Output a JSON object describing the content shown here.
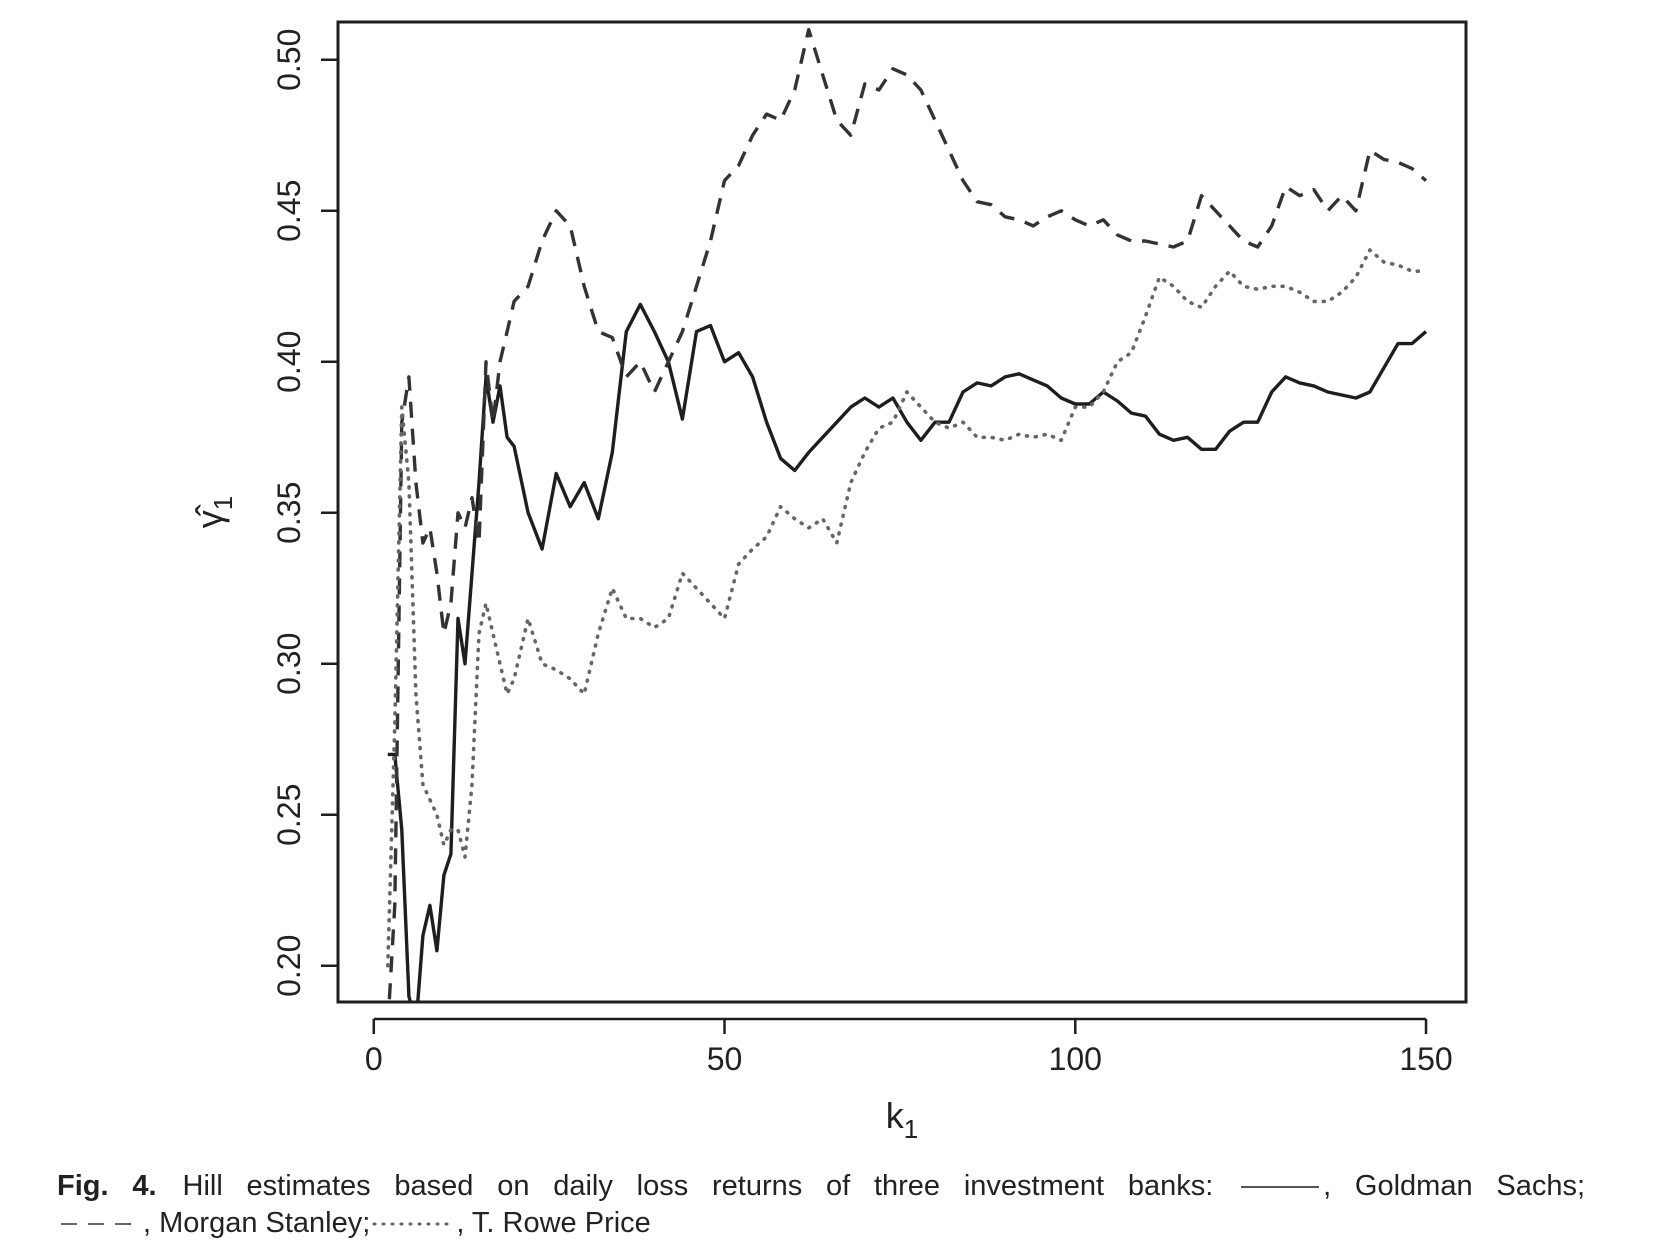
{
  "chart_data": {
    "type": "line",
    "x_label": "k",
    "x_label_subscript": "1",
    "y_label": "γ̂",
    "y_label_subscript": "1",
    "x": [
      2,
      3,
      4,
      5,
      6,
      7,
      8,
      9,
      10,
      11,
      12,
      13,
      14,
      15,
      16,
      17,
      18,
      19,
      20,
      22,
      24,
      26,
      28,
      30,
      32,
      34,
      36,
      38,
      40,
      42,
      44,
      46,
      48,
      50,
      52,
      54,
      56,
      58,
      60,
      62,
      64,
      66,
      68,
      70,
      72,
      74,
      76,
      78,
      80,
      82,
      84,
      86,
      88,
      90,
      92,
      94,
      96,
      98,
      100,
      102,
      104,
      106,
      108,
      110,
      112,
      114,
      116,
      118,
      120,
      122,
      124,
      126,
      128,
      130,
      132,
      134,
      136,
      138,
      140,
      142,
      144,
      146,
      148,
      150
    ],
    "series": [
      {
        "name": "Goldman Sachs",
        "color": "#1e1e1e",
        "dash": "solid",
        "values": [
          0.27,
          0.27,
          0.245,
          0.19,
          0.18,
          0.21,
          0.22,
          0.205,
          0.23,
          0.237,
          0.315,
          0.3,
          0.33,
          0.36,
          0.395,
          0.38,
          0.392,
          0.375,
          0.372,
          0.35,
          0.338,
          0.363,
          0.352,
          0.36,
          0.348,
          0.37,
          0.41,
          0.419,
          0.41,
          0.4,
          0.381,
          0.41,
          0.412,
          0.4,
          0.403,
          0.395,
          0.38,
          0.368,
          0.364,
          0.37,
          0.375,
          0.38,
          0.385,
          0.388,
          0.385,
          0.388,
          0.38,
          0.374,
          0.38,
          0.38,
          0.39,
          0.393,
          0.392,
          0.395,
          0.396,
          0.394,
          0.392,
          0.388,
          0.386,
          0.386,
          0.39,
          0.387,
          0.383,
          0.382,
          0.376,
          0.374,
          0.375,
          0.371,
          0.371,
          0.377,
          0.38,
          0.38,
          0.39,
          0.395,
          0.393,
          0.392,
          0.39,
          0.389,
          0.388,
          0.39,
          0.398,
          0.406,
          0.406,
          0.41
        ]
      },
      {
        "name": "Morgan Stanley",
        "color": "#333333",
        "dash": "dashed",
        "values": [
          0.18,
          0.22,
          0.38,
          0.395,
          0.36,
          0.34,
          0.345,
          0.33,
          0.31,
          0.32,
          0.35,
          0.345,
          0.355,
          0.34,
          0.4,
          0.38,
          0.4,
          0.41,
          0.42,
          0.425,
          0.44,
          0.45,
          0.445,
          0.425,
          0.41,
          0.408,
          0.395,
          0.4,
          0.39,
          0.4,
          0.41,
          0.425,
          0.44,
          0.46,
          0.465,
          0.475,
          0.482,
          0.48,
          0.49,
          0.51,
          0.495,
          0.48,
          0.475,
          0.492,
          0.49,
          0.497,
          0.495,
          0.49,
          0.48,
          0.47,
          0.46,
          0.453,
          0.452,
          0.448,
          0.447,
          0.445,
          0.448,
          0.45,
          0.447,
          0.445,
          0.447,
          0.442,
          0.44,
          0.44,
          0.439,
          0.438,
          0.44,
          0.455,
          0.45,
          0.445,
          0.44,
          0.438,
          0.445,
          0.458,
          0.455,
          0.457,
          0.45,
          0.455,
          0.45,
          0.47,
          0.467,
          0.466,
          0.464,
          0.46
        ]
      },
      {
        "name": "T. Rowe Price",
        "color": "#666666",
        "dash": "dotted",
        "values": [
          0.2,
          0.28,
          0.385,
          0.36,
          0.29,
          0.26,
          0.255,
          0.25,
          0.24,
          0.245,
          0.245,
          0.236,
          0.26,
          0.31,
          0.32,
          0.31,
          0.3,
          0.29,
          0.295,
          0.315,
          0.3,
          0.298,
          0.295,
          0.29,
          0.31,
          0.325,
          0.315,
          0.315,
          0.312,
          0.315,
          0.33,
          0.325,
          0.32,
          0.315,
          0.333,
          0.338,
          0.342,
          0.352,
          0.348,
          0.345,
          0.348,
          0.34,
          0.36,
          0.37,
          0.378,
          0.38,
          0.39,
          0.385,
          0.38,
          0.378,
          0.38,
          0.375,
          0.375,
          0.374,
          0.376,
          0.375,
          0.376,
          0.374,
          0.385,
          0.385,
          0.39,
          0.4,
          0.403,
          0.415,
          0.428,
          0.425,
          0.42,
          0.418,
          0.425,
          0.43,
          0.425,
          0.424,
          0.425,
          0.425,
          0.423,
          0.42,
          0.42,
          0.423,
          0.428,
          0.437,
          0.433,
          0.432,
          0.43,
          0.43
        ]
      }
    ],
    "xlim": [
      -5.1,
      155.7
    ],
    "xticks": [
      0,
      50,
      100,
      150
    ],
    "ylim": [
      0.188,
      0.5125
    ],
    "yticks": [
      {
        "value": 0.2,
        "label": "0.20"
      },
      0.25,
      {
        "value": 0.3,
        "label": "0.30"
      },
      0.35,
      {
        "value": 0.4,
        "label": "0.40"
      },
      0.45,
      {
        "value": 0.5,
        "label": "0.50"
      }
    ],
    "grid": false,
    "caption": {
      "label": "Fig. 4.",
      "text": "Hill estimates based on daily loss returns of three investment banks:",
      "separator": ",",
      "terminator": ";"
    }
  }
}
